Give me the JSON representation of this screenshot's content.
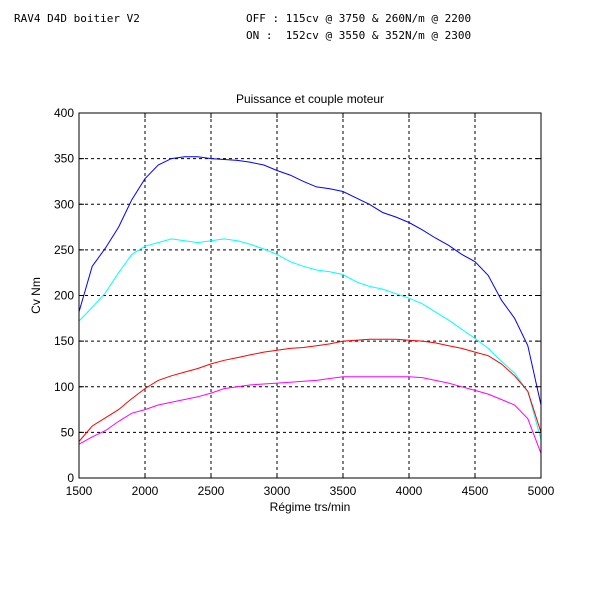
{
  "header": {
    "left": "RAV4 D4D boitier V2",
    "right_line1": "OFF : 115cv @ 3750 & 260N/m @ 2200",
    "right_line2": "ON :  152cv @ 3550 & 352N/m @ 2300"
  },
  "chart_data": {
    "type": "line",
    "title": "Puissance et couple moteur",
    "xlabel": "Régime trs/min",
    "ylabel": "Cv Nm",
    "xlim": [
      1500,
      5000
    ],
    "ylim": [
      0,
      400
    ],
    "xticks": [
      1500,
      2000,
      2500,
      3000,
      3500,
      4000,
      4500,
      5000
    ],
    "yticks": [
      0,
      50,
      100,
      150,
      200,
      250,
      300,
      350,
      400
    ],
    "grid": true,
    "series": [
      {
        "color": "#0000ff",
        "x": [
          1500,
          1600,
          1700,
          1800,
          1900,
          2000,
          2100,
          2200,
          2300,
          2400,
          2500,
          2600,
          2700,
          2800,
          2900,
          3000,
          3100,
          3200,
          3300,
          3400,
          3500,
          3600,
          3700,
          3800,
          3900,
          4000,
          4100,
          4200,
          4300,
          4400,
          4500,
          4600,
          4700,
          4800,
          4900,
          5000
        ],
        "y": [
          182,
          232,
          252,
          275,
          305,
          328,
          343,
          350,
          352,
          352,
          350,
          349,
          348,
          346,
          343,
          337,
          332,
          325,
          319,
          317,
          314,
          307,
          300,
          291,
          286,
          280,
          272,
          263,
          255,
          245,
          237,
          222,
          195,
          175,
          145,
          80
        ]
      },
      {
        "color": "#00ffff",
        "x": [
          1500,
          1600,
          1700,
          1800,
          1900,
          2000,
          2100,
          2200,
          2300,
          2400,
          2500,
          2600,
          2700,
          2800,
          2900,
          3000,
          3100,
          3200,
          3300,
          3400,
          3500,
          3600,
          3700,
          3800,
          3900,
          4000,
          4100,
          4200,
          4300,
          4400,
          4500,
          4600,
          4700,
          4800,
          4900,
          5000
        ],
        "y": [
          172,
          187,
          203,
          225,
          245,
          254,
          258,
          262,
          260,
          258,
          260,
          262,
          260,
          256,
          251,
          245,
          237,
          232,
          228,
          226,
          223,
          215,
          210,
          207,
          202,
          197,
          191,
          182,
          173,
          163,
          153,
          142,
          128,
          115,
          95,
          42
        ]
      },
      {
        "color": "#ff0000",
        "x": [
          1500,
          1600,
          1700,
          1800,
          1900,
          2000,
          2100,
          2200,
          2300,
          2400,
          2500,
          2600,
          2700,
          2800,
          2900,
          3000,
          3100,
          3200,
          3300,
          3400,
          3500,
          3600,
          3700,
          3800,
          3900,
          4000,
          4100,
          4200,
          4300,
          4400,
          4500,
          4600,
          4700,
          4800,
          4900,
          5000
        ],
        "y": [
          40,
          57,
          66,
          75,
          87,
          98,
          107,
          112,
          116,
          120,
          125,
          129,
          132,
          135,
          138,
          140,
          142,
          143,
          145,
          147,
          150,
          151,
          152,
          152,
          152,
          151,
          150,
          148,
          145,
          142,
          138,
          134,
          125,
          112,
          95,
          50
        ]
      },
      {
        "color": "#ff00ff",
        "x": [
          1500,
          1600,
          1700,
          1800,
          1900,
          2000,
          2100,
          2200,
          2300,
          2400,
          2500,
          2600,
          2700,
          2800,
          2900,
          3000,
          3100,
          3200,
          3300,
          3400,
          3500,
          3600,
          3700,
          3800,
          3900,
          4000,
          4100,
          4200,
          4300,
          4400,
          4500,
          4600,
          4700,
          4800,
          4900,
          5000
        ],
        "y": [
          37,
          45,
          52,
          62,
          71,
          75,
          80,
          83,
          86,
          89,
          93,
          98,
          100,
          102,
          103,
          104,
          105,
          106,
          107,
          109,
          111,
          111,
          111,
          111,
          111,
          111,
          110,
          107,
          104,
          100,
          96,
          92,
          86,
          80,
          65,
          27
        ]
      }
    ]
  }
}
